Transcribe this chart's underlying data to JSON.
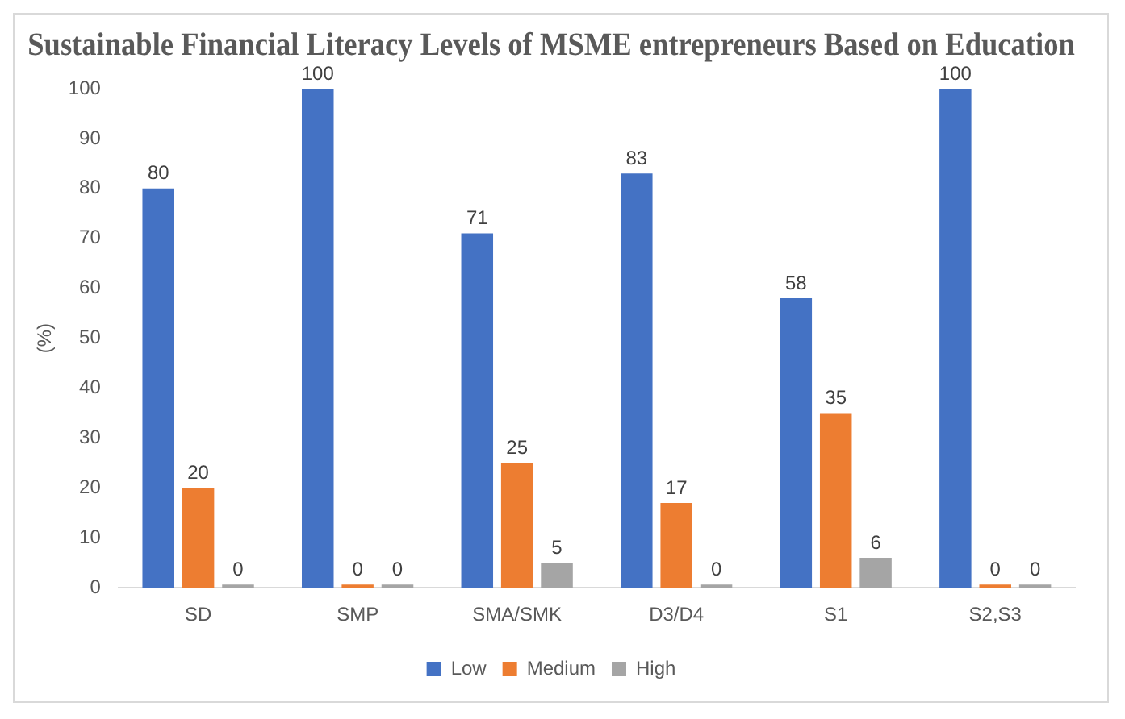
{
  "chart_data": {
    "type": "bar",
    "title": "Sustainable Financial Literacy Levels of MSME entrepreneurs Based on Education",
    "ylabel": "(%)",
    "categories": [
      "SD",
      "SMP",
      "SMA/SMK",
      "D3/D4",
      "S1",
      "S2,S3"
    ],
    "series": [
      {
        "name": "Low",
        "color": "#4472c4",
        "values": [
          80,
          100,
          71,
          83,
          58,
          100
        ]
      },
      {
        "name": "Medium",
        "color": "#ed7d31",
        "values": [
          20,
          0,
          25,
          17,
          35,
          0
        ]
      },
      {
        "name": "High",
        "color": "#a5a5a5",
        "values": [
          0,
          0,
          5,
          0,
          6,
          0
        ]
      }
    ],
    "ylim": [
      0,
      100
    ],
    "yticks": [
      0,
      10,
      20,
      30,
      40,
      50,
      60,
      70,
      80,
      90,
      100
    ],
    "grid": false,
    "legend": "bottom",
    "data_labels": true
  }
}
